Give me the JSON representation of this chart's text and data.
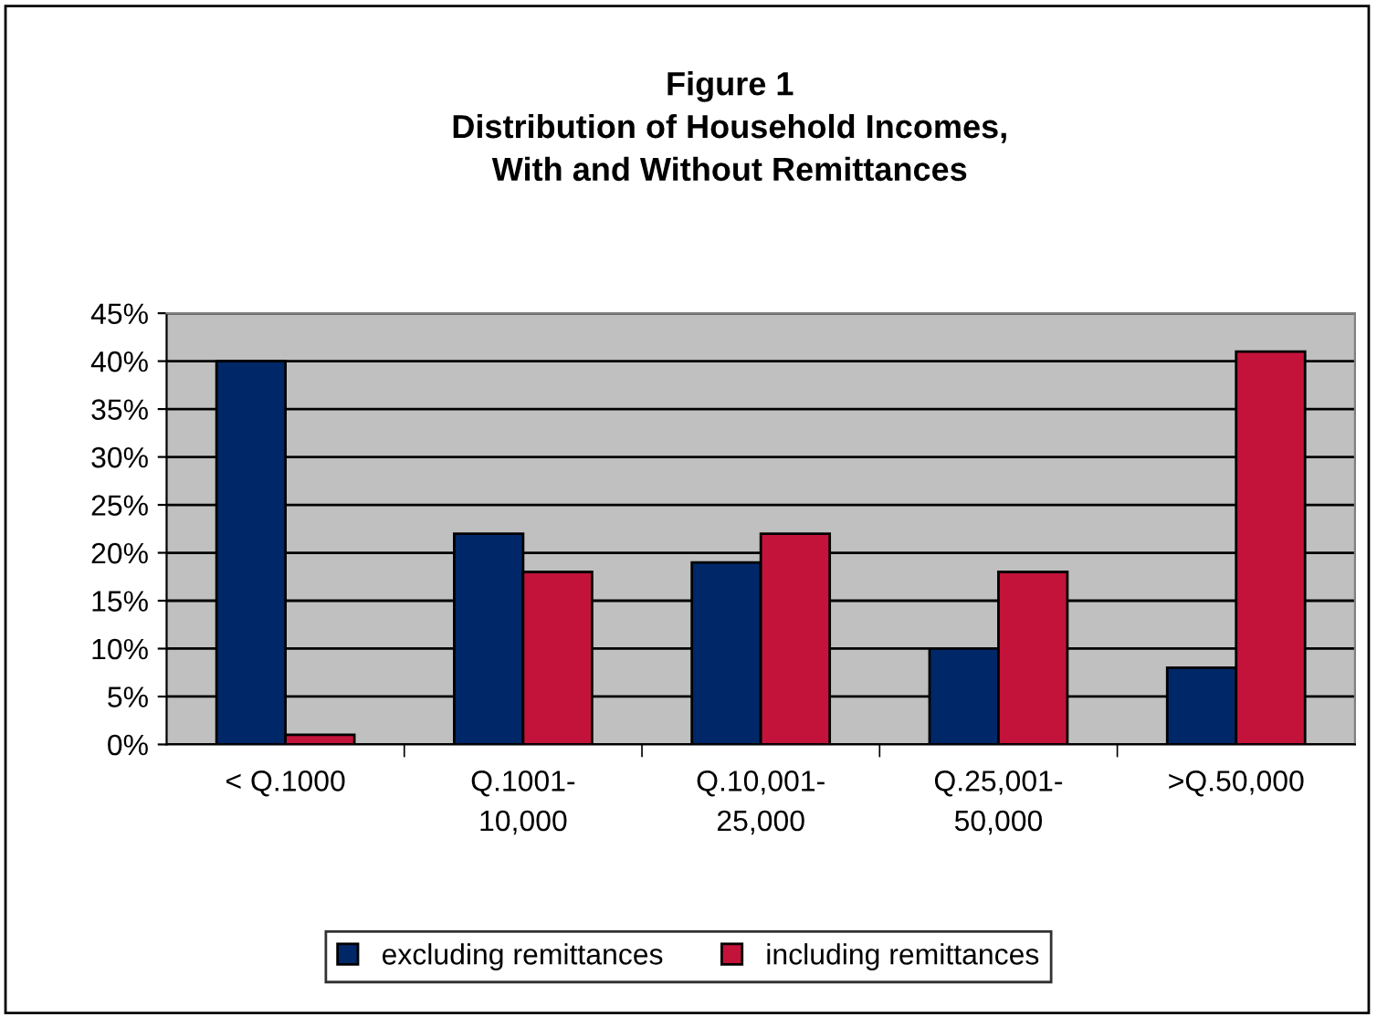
{
  "chart_data": {
    "type": "bar",
    "title": "Figure 1\nDistribution of Household Incomes,\nWith and Without Remittances",
    "categories": [
      "< Q.1000",
      "Q.1001-\n10,000",
      "Q.10,001-\n25,000",
      "Q.25,001-\n50,000",
      ">Q.50,000"
    ],
    "series": [
      {
        "name": "excluding remittances",
        "color": "#002868",
        "values": [
          40,
          22,
          19,
          10,
          8
        ]
      },
      {
        "name": "including remittances",
        "color": "#c4133a",
        "values": [
          1,
          18,
          22,
          18,
          41
        ]
      }
    ],
    "ylim": [
      0,
      45
    ],
    "yticks": [
      {
        "value": 0,
        "label": "0%"
      },
      {
        "value": 5,
        "label": "5%"
      },
      {
        "value": 10,
        "label": "10%"
      },
      {
        "value": 15,
        "label": "15%"
      },
      {
        "value": 20,
        "label": "20%"
      },
      {
        "value": 25,
        "label": "25%"
      },
      {
        "value": 30,
        "label": "30%"
      },
      {
        "value": 35,
        "label": "35%"
      },
      {
        "value": 40,
        "label": "40%"
      },
      {
        "value": 45,
        "label": "45%"
      }
    ],
    "grid": "y",
    "legend": "bottom"
  }
}
